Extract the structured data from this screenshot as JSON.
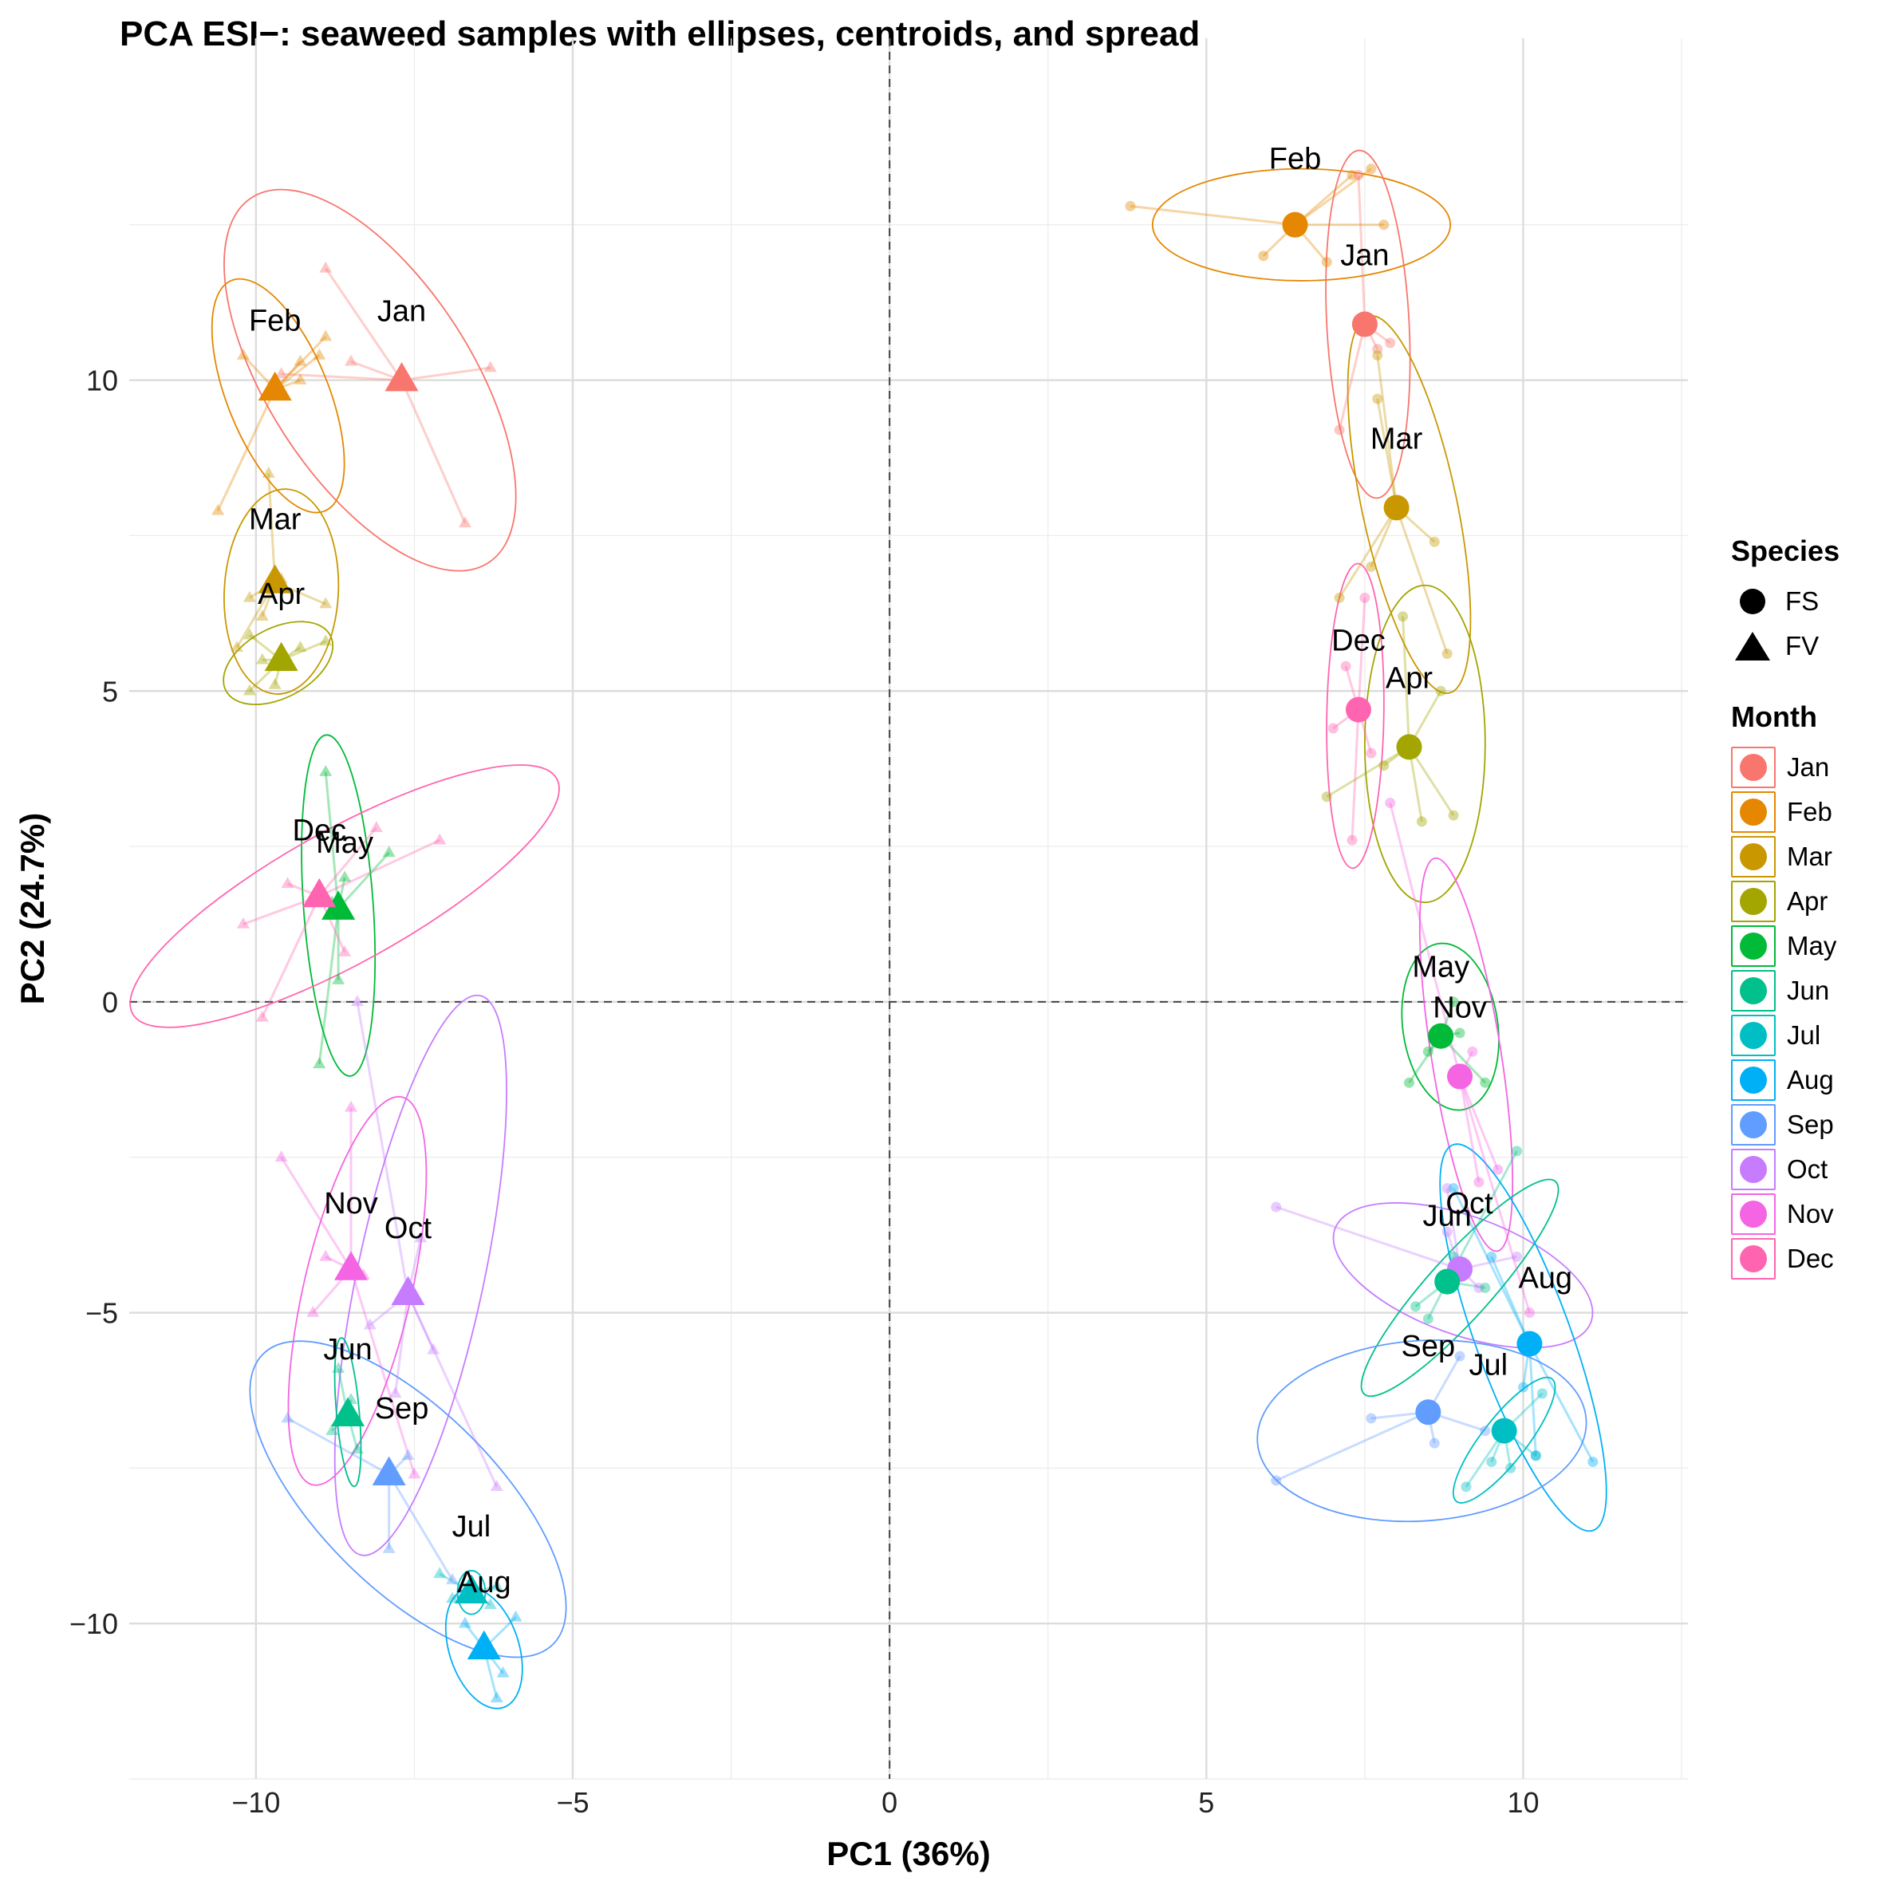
{
  "chart_data": {
    "type": "scatter",
    "title": "PCA ESI−: seaweed samples with ellipses, centroids, and spread",
    "xlabel": "PC1 (36%)",
    "ylabel": "PC2 (24.7%)",
    "xlim": [
      -12,
      12.6
    ],
    "ylim": [
      -12.5,
      15.5
    ],
    "x_ticks": [
      -10,
      -5,
      0,
      5,
      10
    ],
    "x_tick_labels": [
      "−10",
      "−5",
      "0",
      "5",
      "10"
    ],
    "y_ticks": [
      -10,
      -5,
      0,
      5,
      10
    ],
    "y_tick_labels": [
      "−10",
      "−5",
      "0",
      "5",
      "10"
    ],
    "reference_lines": {
      "x": 0,
      "y": 0,
      "style": "dashed"
    },
    "species_legend_title": "Species",
    "species": [
      {
        "name": "FS",
        "shape": "circle"
      },
      {
        "name": "FV",
        "shape": "triangle"
      }
    ],
    "month_legend_title": "Month",
    "months": [
      {
        "name": "Jan",
        "color": "#F8766D"
      },
      {
        "name": "Feb",
        "color": "#E58700"
      },
      {
        "name": "Mar",
        "color": "#C99800"
      },
      {
        "name": "Apr",
        "color": "#A3A500"
      },
      {
        "name": "May",
        "color": "#00BA38"
      },
      {
        "name": "Jun",
        "color": "#00C08B"
      },
      {
        "name": "Jul",
        "color": "#00BFC4"
      },
      {
        "name": "Aug",
        "color": "#00B0F6"
      },
      {
        "name": "Sep",
        "color": "#619CFF"
      },
      {
        "name": "Oct",
        "color": "#C77CFF"
      },
      {
        "name": "Nov",
        "color": "#F564E3"
      },
      {
        "name": "Dec",
        "color": "#FF64B0"
      }
    ],
    "groups": [
      {
        "month": "Jan",
        "species": "FV",
        "centroid": [
          -7.7,
          10.0
        ],
        "label": "Jan",
        "label_pos": [
          -7.7,
          10.95
        ],
        "points": [
          [
            -8.9,
            11.8
          ],
          [
            -6.3,
            10.2
          ],
          [
            -6.7,
            7.7
          ],
          [
            -9.6,
            10.1
          ],
          [
            -8.5,
            10.3
          ]
        ],
        "ellipse": {
          "cx": -8.2,
          "cy": 10.0,
          "rx": 1.6,
          "ry": 3.5,
          "angle": -33
        }
      },
      {
        "month": "Feb",
        "species": "FV",
        "centroid": [
          -9.7,
          9.85
        ],
        "label": "Feb",
        "label_pos": [
          -9.7,
          10.8
        ],
        "points": [
          [
            -10.2,
            10.4
          ],
          [
            -9.3,
            10.0
          ],
          [
            -9.3,
            10.3
          ],
          [
            -8.9,
            10.7
          ],
          [
            -10.6,
            7.9
          ],
          [
            -9.0,
            10.4
          ]
        ],
        "ellipse": {
          "cx": -9.65,
          "cy": 9.75,
          "rx": 0.8,
          "ry": 2.0,
          "angle": -22
        }
      },
      {
        "month": "Mar",
        "species": "FV",
        "centroid": [
          -9.7,
          6.75
        ],
        "label": "Mar",
        "label_pos": [
          -9.7,
          7.6
        ],
        "points": [
          [
            -9.8,
            8.5
          ],
          [
            -10.3,
            5.7
          ],
          [
            -9.9,
            6.2
          ],
          [
            -9.6,
            6.8
          ],
          [
            -8.9,
            6.4
          ],
          [
            -10.1,
            6.5
          ]
        ],
        "ellipse": {
          "cx": -9.6,
          "cy": 6.6,
          "rx": 0.9,
          "ry": 1.65,
          "angle": 3
        }
      },
      {
        "month": "Apr",
        "species": "FV",
        "centroid": [
          -9.6,
          5.5
        ],
        "label": "Apr",
        "label_pos": [
          -9.6,
          6.4
        ],
        "points": [
          [
            -10.1,
            5.9
          ],
          [
            -10.1,
            5.0
          ],
          [
            -9.7,
            5.1
          ],
          [
            -9.3,
            5.7
          ],
          [
            -8.9,
            5.8
          ],
          [
            -9.9,
            5.5
          ]
        ],
        "ellipse": {
          "cx": -9.65,
          "cy": 5.45,
          "rx": 0.55,
          "ry": 0.95,
          "angle": 62
        }
      },
      {
        "month": "May",
        "species": "FV",
        "centroid": [
          -8.7,
          1.5
        ],
        "label": "May",
        "label_pos": [
          -8.6,
          2.4
        ],
        "points": [
          [
            -8.9,
            3.7
          ],
          [
            -7.9,
            2.4
          ],
          [
            -8.7,
            0.35
          ],
          [
            -9.0,
            -1.0
          ],
          [
            -8.6,
            2.0
          ],
          [
            -8.8,
            1.6
          ]
        ],
        "ellipse": {
          "cx": -8.7,
          "cy": 1.55,
          "rx": 0.55,
          "ry": 2.75,
          "angle": -4
        }
      },
      {
        "month": "Dec",
        "species": "FV",
        "centroid": [
          -9.0,
          1.7
        ],
        "label": "Dec",
        "label_pos": [
          -9.0,
          2.6
        ],
        "points": [
          [
            -10.2,
            1.25
          ],
          [
            -9.5,
            1.9
          ],
          [
            -7.1,
            2.6
          ],
          [
            -8.1,
            2.8
          ],
          [
            -9.9,
            -0.25
          ],
          [
            -8.6,
            0.8
          ]
        ],
        "ellipse": {
          "cx": -8.6,
          "cy": 1.7,
          "rx": 1.05,
          "ry": 3.9,
          "angle": 61
        }
      },
      {
        "month": "Oct",
        "species": "FV",
        "centroid": [
          -7.6,
          -4.7
        ],
        "label": "Oct",
        "label_pos": [
          -7.6,
          -3.8
        ],
        "points": [
          [
            -7.4,
            -3.8
          ],
          [
            -8.4,
            0.0
          ],
          [
            -6.2,
            -7.8
          ],
          [
            -7.8,
            -6.3
          ],
          [
            -8.2,
            -5.2
          ],
          [
            -7.2,
            -5.6
          ]
        ],
        "ellipse": {
          "cx": -7.4,
          "cy": -4.4,
          "rx": 1.0,
          "ry": 4.6,
          "angle": 12
        }
      },
      {
        "month": "Nov",
        "species": "FV",
        "centroid": [
          -8.5,
          -4.3
        ],
        "label": "Nov",
        "label_pos": [
          -8.5,
          -3.4
        ],
        "points": [
          [
            -9.6,
            -2.5
          ],
          [
            -8.5,
            -1.7
          ],
          [
            -8.9,
            -4.1
          ],
          [
            -7.5,
            -7.6
          ],
          [
            -8.3,
            -4.4
          ],
          [
            -9.1,
            -5.0
          ]
        ],
        "ellipse": {
          "cx": -8.4,
          "cy": -4.65,
          "rx": 0.85,
          "ry": 3.2,
          "angle": 13
        }
      },
      {
        "month": "Jun",
        "species": "FV",
        "centroid": [
          -8.55,
          -6.65
        ],
        "label": "Jun",
        "label_pos": [
          -8.55,
          -5.75
        ],
        "points": [
          [
            -8.7,
            -5.9
          ],
          [
            -8.4,
            -7.2
          ],
          [
            -8.5,
            -6.4
          ],
          [
            -8.8,
            -6.9
          ]
        ],
        "ellipse": {
          "cx": -8.55,
          "cy": -6.6,
          "rx": 0.18,
          "ry": 1.2,
          "angle": -5
        }
      },
      {
        "month": "Sep",
        "species": "FV",
        "centroid": [
          -7.9,
          -7.6
        ],
        "label": "Sep",
        "label_pos": [
          -7.7,
          -6.7
        ],
        "points": [
          [
            -9.5,
            -6.7
          ],
          [
            -7.9,
            -8.8
          ],
          [
            -6.9,
            -9.3
          ],
          [
            -7.6,
            -7.3
          ]
        ],
        "ellipse": {
          "cx": -7.6,
          "cy": -8.0,
          "rx": 1.4,
          "ry": 3.3,
          "angle": -45
        }
      },
      {
        "month": "Jul",
        "species": "FV",
        "centroid": [
          -6.6,
          -9.5
        ],
        "label": "Jul",
        "label_pos": [
          -6.6,
          -8.6
        ],
        "points": [
          [
            -7.1,
            -9.2
          ],
          [
            -6.2,
            -9.4
          ],
          [
            -6.9,
            -9.6
          ],
          [
            -6.3,
            -9.7
          ]
        ],
        "ellipse": {
          "cx": -6.6,
          "cy": -9.5,
          "rx": 0.22,
          "ry": 0.35,
          "angle": 0
        }
      },
      {
        "month": "Aug",
        "species": "FV",
        "centroid": [
          -6.4,
          -10.4
        ],
        "label": "Aug",
        "label_pos": [
          -6.4,
          -9.5
        ],
        "points": [
          [
            -6.2,
            -11.2
          ],
          [
            -5.9,
            -9.9
          ],
          [
            -6.1,
            -10.8
          ],
          [
            -6.7,
            -10.0
          ]
        ],
        "ellipse": {
          "cx": -6.4,
          "cy": -10.4,
          "rx": 0.55,
          "ry": 1.0,
          "angle": -18
        }
      },
      {
        "month": "Feb",
        "species": "FS",
        "centroid": [
          6.4,
          12.5
        ],
        "label": "Feb",
        "label_pos": [
          6.4,
          13.4
        ],
        "points": [
          [
            3.8,
            12.8
          ],
          [
            7.3,
            13.3
          ],
          [
            7.6,
            13.4
          ],
          [
            6.9,
            11.9
          ],
          [
            5.9,
            12.0
          ],
          [
            7.8,
            12.5
          ]
        ],
        "ellipse": {
          "cx": 6.5,
          "cy": 12.5,
          "rx": 2.35,
          "ry": 0.9,
          "angle": 0
        }
      },
      {
        "month": "Jan",
        "species": "FS",
        "centroid": [
          7.5,
          10.9
        ],
        "label": "Jan",
        "label_pos": [
          7.5,
          11.85
        ],
        "points": [
          [
            7.7,
            10.5
          ],
          [
            7.4,
            13.3
          ],
          [
            7.1,
            9.2
          ],
          [
            7.9,
            10.6
          ]
        ],
        "ellipse": {
          "cx": 7.55,
          "cy": 10.9,
          "rx": 0.65,
          "ry": 2.8,
          "angle": -3
        }
      },
      {
        "month": "Mar",
        "species": "FS",
        "centroid": [
          8.0,
          7.95
        ],
        "label": "Mar",
        "label_pos": [
          8.0,
          8.9
        ],
        "points": [
          [
            7.7,
            10.4
          ],
          [
            7.7,
            9.7
          ],
          [
            7.1,
            6.5
          ],
          [
            8.8,
            5.6
          ],
          [
            8.6,
            7.4
          ],
          [
            7.6,
            7.0
          ]
        ],
        "ellipse": {
          "cx": 8.2,
          "cy": 8.0,
          "rx": 0.75,
          "ry": 3.1,
          "angle": -12
        }
      },
      {
        "month": "Apr",
        "species": "FS",
        "centroid": [
          8.2,
          4.1
        ],
        "label": "Apr",
        "label_pos": [
          8.2,
          5.05
        ],
        "points": [
          [
            6.9,
            3.3
          ],
          [
            8.9,
            3.0
          ],
          [
            8.4,
            2.9
          ],
          [
            8.1,
            6.2
          ],
          [
            8.7,
            5.0
          ],
          [
            7.8,
            3.8
          ]
        ],
        "ellipse": {
          "cx": 8.45,
          "cy": 4.15,
          "rx": 0.95,
          "ry": 2.55,
          "angle": 0
        }
      },
      {
        "month": "Dec",
        "species": "FS",
        "centroid": [
          7.4,
          4.7
        ],
        "label": "Dec",
        "label_pos": [
          7.4,
          5.65
        ],
        "points": [
          [
            7.2,
            5.4
          ],
          [
            7.6,
            4.0
          ],
          [
            7.0,
            4.4
          ],
          [
            7.3,
            2.6
          ],
          [
            7.5,
            6.5
          ]
        ],
        "ellipse": {
          "cx": 7.35,
          "cy": 4.6,
          "rx": 0.45,
          "ry": 2.45,
          "angle": 1
        }
      },
      {
        "month": "May",
        "species": "FS",
        "centroid": [
          8.7,
          -0.55
        ],
        "label": "May",
        "label_pos": [
          8.7,
          0.4
        ],
        "points": [
          [
            8.2,
            -1.3
          ],
          [
            9.4,
            -1.3
          ],
          [
            9.0,
            -0.5
          ],
          [
            8.5,
            -0.8
          ],
          [
            8.9,
            0.0
          ]
        ],
        "ellipse": {
          "cx": 8.85,
          "cy": -0.4,
          "rx": 0.75,
          "ry": 1.35,
          "angle": -8
        }
      },
      {
        "month": "Nov",
        "species": "FS",
        "centroid": [
          9.0,
          -1.2
        ],
        "label": "Nov",
        "label_pos": [
          9.0,
          -0.25
        ],
        "points": [
          [
            7.9,
            3.2
          ],
          [
            9.2,
            -0.8
          ],
          [
            9.6,
            -2.7
          ],
          [
            10.1,
            -5.0
          ],
          [
            9.3,
            -2.9
          ]
        ],
        "ellipse": {
          "cx": 9.1,
          "cy": -0.85,
          "rx": 0.55,
          "ry": 3.2,
          "angle": -9
        }
      },
      {
        "month": "Oct",
        "species": "FS",
        "centroid": [
          9.0,
          -4.3
        ],
        "label": "Oct",
        "label_pos": [
          9.15,
          -3.4
        ],
        "points": [
          [
            6.1,
            -3.3
          ],
          [
            9.9,
            -4.1
          ],
          [
            8.8,
            -3.7
          ],
          [
            8.8,
            -3.0
          ],
          [
            9.3,
            -4.6
          ]
        ],
        "ellipse": {
          "cx": 9.05,
          "cy": -4.4,
          "rx": 2.15,
          "ry": 0.95,
          "angle": 20
        }
      },
      {
        "month": "Jun",
        "species": "FS",
        "centroid": [
          8.8,
          -4.5
        ],
        "label": "Jun",
        "label_pos": [
          8.8,
          -3.6
        ],
        "points": [
          [
            9.9,
            -2.4
          ],
          [
            8.3,
            -4.9
          ],
          [
            8.5,
            -5.1
          ],
          [
            9.4,
            -4.6
          ],
          [
            8.9,
            -4.1
          ]
        ],
        "ellipse": {
          "cx": 9.0,
          "cy": -4.6,
          "rx": 0.5,
          "ry": 2.3,
          "angle": 42
        }
      },
      {
        "month": "Aug",
        "species": "FS",
        "centroid": [
          10.1,
          -5.5
        ],
        "label": "Aug",
        "label_pos": [
          10.35,
          -4.6
        ],
        "points": [
          [
            11.1,
            -7.4
          ],
          [
            8.9,
            -3.0
          ],
          [
            9.5,
            -4.1
          ],
          [
            10.2,
            -7.3
          ],
          [
            10.0,
            -6.2
          ]
        ],
        "ellipse": {
          "cx": 10.0,
          "cy": -5.4,
          "rx": 0.75,
          "ry": 3.3,
          "angle": -20
        }
      },
      {
        "month": "Sep",
        "species": "FS",
        "centroid": [
          8.5,
          -6.6
        ],
        "label": "Sep",
        "label_pos": [
          8.5,
          -5.7
        ],
        "points": [
          [
            6.1,
            -7.7
          ],
          [
            7.6,
            -6.7
          ],
          [
            8.6,
            -7.1
          ],
          [
            9.0,
            -5.7
          ],
          [
            9.4,
            -6.9
          ]
        ],
        "ellipse": {
          "cx": 8.4,
          "cy": -6.9,
          "rx": 2.6,
          "ry": 1.45,
          "angle": -4
        }
      },
      {
        "month": "Jul",
        "species": "FS",
        "centroid": [
          9.7,
          -6.9
        ],
        "label": "Jul",
        "label_pos": [
          9.45,
          -6.0
        ],
        "points": [
          [
            9.1,
            -7.8
          ],
          [
            9.5,
            -7.4
          ],
          [
            10.3,
            -6.3
          ],
          [
            10.2,
            -7.3
          ],
          [
            9.8,
            -7.5
          ]
        ],
        "ellipse": {
          "cx": 9.7,
          "cy": -7.05,
          "rx": 0.35,
          "ry": 1.25,
          "angle": 38
        }
      }
    ]
  }
}
